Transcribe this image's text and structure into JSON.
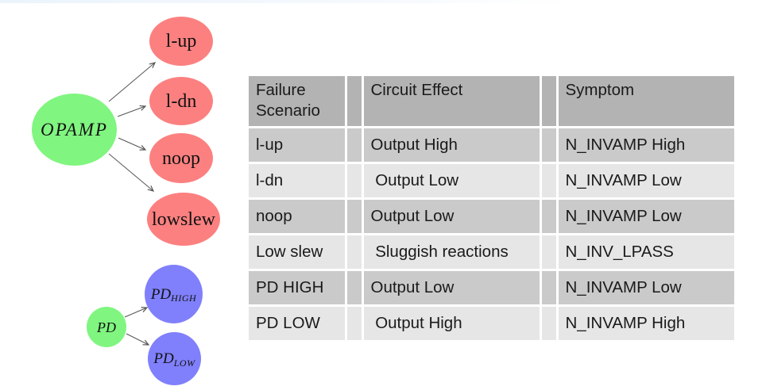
{
  "colors": {
    "node_green": "#80f580",
    "node_red": "#fc8080",
    "node_blue": "#8080fc",
    "table_header_bg": "#b3b3b3",
    "row_dark_bg": "#cacaca",
    "row_light_bg": "#e6e6e6",
    "cell_border": "#ffffff",
    "arrow": "#555555",
    "text": "#1a1a1a"
  },
  "diagram": {
    "opamp": {
      "label": "OPAMP"
    },
    "opamp_children": [
      {
        "label": "l-up"
      },
      {
        "label": "l-dn"
      },
      {
        "label": "noop"
      },
      {
        "label": "lowslew"
      }
    ],
    "pd": {
      "label": "PD"
    },
    "pd_children": [
      {
        "main": "PD",
        "sub": "HIGH"
      },
      {
        "main": "PD",
        "sub": "LOW"
      }
    ]
  },
  "table": {
    "headers": {
      "failure_scenario": "Failure Scenario",
      "circuit_effect": "Circuit Effect",
      "symptom": "Symptom"
    },
    "rows": [
      {
        "scenario": "l-up",
        "effect": "Output High",
        "symptom": "N_INVAMP High"
      },
      {
        "scenario": "l-dn",
        "effect": " Output Low",
        "symptom": "N_INVAMP Low"
      },
      {
        "scenario": "noop",
        "effect": "Output Low",
        "symptom": "N_INVAMP Low"
      },
      {
        "scenario": "Low slew",
        "effect": " Sluggish reactions",
        "symptom": "N_INV_LPASS"
      },
      {
        "scenario": "PD HIGH",
        "effect": "Output Low",
        "symptom": "N_INVAMP Low"
      },
      {
        "scenario": "PD LOW",
        "effect": " Output High",
        "symptom": "N_INVAMP High"
      }
    ]
  }
}
